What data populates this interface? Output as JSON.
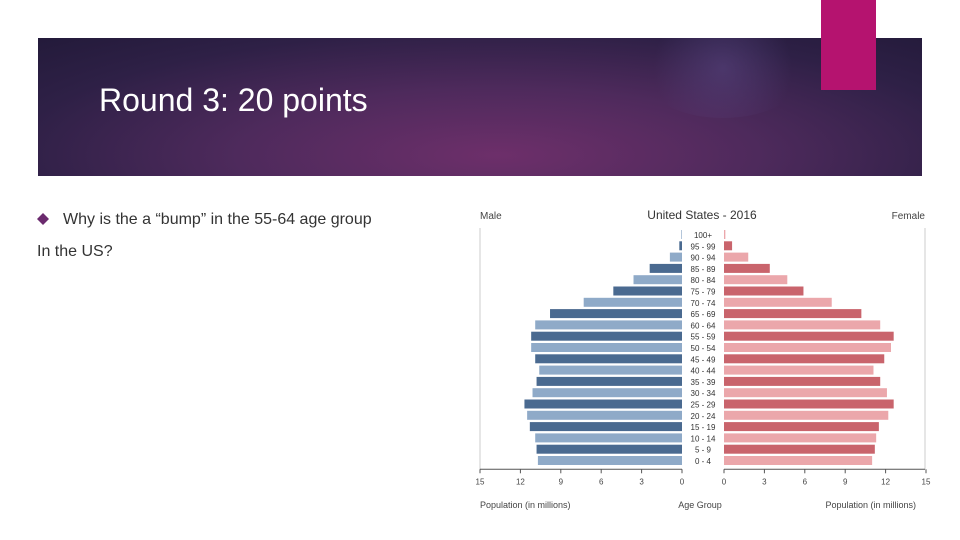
{
  "slide": {
    "title": "Round 3: 20 points",
    "bullet_text": "Why is the a “bump” in the 55-64 age group",
    "line2": "In the US?"
  },
  "colors": {
    "banner_dark": "#2e2046",
    "banner_light": "#6d2f6a",
    "accent": "#b5136f",
    "male_dark": "#4a6a90",
    "male_light": "#8faac8",
    "female_dark": "#c9646c",
    "female_light": "#eba7ab"
  },
  "chart_data": {
    "type": "bar",
    "title": "United States - 2016",
    "left_label": "Male",
    "right_label": "Female",
    "categories": [
      "100+",
      "95 - 99",
      "90 - 94",
      "85 - 89",
      "80 - 84",
      "75 - 79",
      "70 - 74",
      "65 - 69",
      "60 - 64",
      "55 - 59",
      "50 - 54",
      "45 - 49",
      "40 - 44",
      "35 - 39",
      "30 - 34",
      "25 - 29",
      "20 - 24",
      "15 - 19",
      "10 - 14",
      "5 - 9",
      "0 - 4"
    ],
    "series": [
      {
        "name": "Male",
        "values": [
          0.05,
          0.2,
          0.9,
          2.4,
          3.6,
          5.1,
          7.3,
          9.8,
          10.9,
          11.2,
          11.2,
          10.9,
          10.6,
          10.8,
          11.1,
          11.7,
          11.5,
          11.3,
          10.9,
          10.8,
          10.7
        ]
      },
      {
        "name": "Female",
        "values": [
          0.1,
          0.6,
          1.8,
          3.4,
          4.7,
          5.9,
          8.0,
          10.2,
          11.6,
          12.6,
          12.4,
          11.9,
          11.1,
          11.6,
          12.1,
          12.6,
          12.2,
          11.5,
          11.3,
          11.2,
          11.0
        ]
      }
    ],
    "xlim": [
      0,
      15
    ],
    "xticks_left": [
      "15",
      "12",
      "9",
      "6",
      "3",
      "0"
    ],
    "xticks_right": [
      "0",
      "3",
      "6",
      "9",
      "12",
      "15"
    ],
    "xlabel_left": "Population (in millions)",
    "xlabel_center": "Age Group",
    "xlabel_right": "Population (in millions)"
  }
}
